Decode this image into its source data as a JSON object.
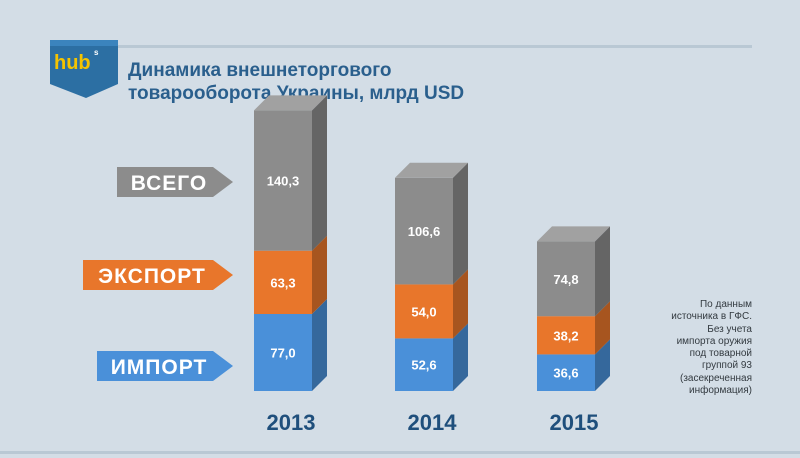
{
  "logo": {
    "text": "hub",
    "superscript": "s"
  },
  "title_lines": [
    "Динамика внешнеторгового",
    "товарооборота Украины, млрд USD"
  ],
  "colors": {
    "total": "#8c8c8c",
    "export": "#e8762b",
    "import": "#4a90d9",
    "title": "#2a5f8d",
    "years": "#1f4f7c",
    "background": "#d3dde6"
  },
  "chart_data": {
    "type": "bar",
    "categories": [
      "2013",
      "2014",
      "2015"
    ],
    "series": [
      {
        "name": "ИМПОРТ",
        "values": [
          77.0,
          52.6,
          36.6
        ],
        "labels": [
          "77,0",
          "52,6",
          "36,6"
        ]
      },
      {
        "name": "ЭКСПОРТ",
        "values": [
          63.3,
          54.0,
          38.2
        ],
        "labels": [
          "63,3",
          "54,0",
          "38,2"
        ]
      },
      {
        "name": "ВСЕГО",
        "values": [
          140.3,
          106.6,
          74.8
        ],
        "labels": [
          "140,3",
          "106,6",
          "74,8"
        ]
      }
    ],
    "title": "Динамика внешнеторгового товарооборота Украины, млрд USD"
  },
  "source_note": [
    "По данным",
    "источника в ГФС.",
    "Без учета",
    "импорта оружия",
    "под товарной",
    "группой 93",
    "(засекреченная",
    "информация)"
  ]
}
